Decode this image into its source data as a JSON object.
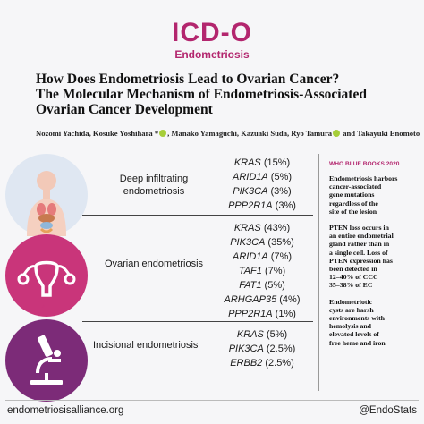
{
  "header": {
    "logo": "ICD-O",
    "logo_sub": "Endometriosis"
  },
  "title_lines": [
    "How Does Endometriosis Lead to Ovarian Cancer?",
    "The Molecular Mechanism of Endometriosis-Associated",
    "Ovarian Cancer Development"
  ],
  "authors": {
    "part1": "Nozomi Yachida, Kosuke Yoshihara *",
    "part2": ", Manako Yamaguchi, Kazuaki Suda, Ryo Tamura",
    "part3": " and Takayuki Enomoto"
  },
  "rows": [
    {
      "label": "Deep infiltrating endometriosis",
      "icon": "human-torso-icon",
      "genes": [
        {
          "name": "KRAS",
          "pct": " (15%)"
        },
        {
          "name": "ARID1A",
          "pct": " (5%)"
        },
        {
          "name": "PIK3CA",
          "pct": " (3%)"
        },
        {
          "name": "PPP2R1A",
          "pct": " (3%)"
        }
      ]
    },
    {
      "label": "Ovarian endometriosis",
      "icon": "uterus-ovaries-icon",
      "genes": [
        {
          "name": "KRAS",
          "pct": " (43%)"
        },
        {
          "name": "PIK3CA",
          "pct": " (35%)"
        },
        {
          "name": "ARID1A",
          "pct": " (7%)"
        },
        {
          "name": "TAF1",
          "pct": " (7%)"
        },
        {
          "name": "FAT1",
          "pct": " (5%)"
        },
        {
          "name": "ARHGAP35",
          "pct": " (4%)"
        },
        {
          "name": "PPP2R1A",
          "pct": " (1%)"
        }
      ]
    },
    {
      "label": "Incisional endometriosis",
      "icon": "microscope-icon",
      "genes": [
        {
          "name": "KRAS",
          "pct": " (5%)"
        },
        {
          "name": "PIK3CA",
          "pct": " (2.5%)"
        },
        {
          "name": "ERBB2",
          "pct": " (2.5%)"
        }
      ]
    }
  ],
  "sidebar": {
    "heading": "WHO BLUE BOOKS 2020",
    "blocks": [
      [
        "Endometriosis harbors",
        "cancer-associated",
        "gene mutations",
        "regardless of the",
        "site of the lesion"
      ],
      [
        "PTEN loss occurs in",
        "an entire endometrial",
        "gland rather than in",
        "a single cell.  Loss of",
        "PTEN expression has",
        "been detected in",
        "12–40% of CCC",
        "35–38% of EC"
      ],
      [
        "Endometriotic",
        "cysts are harsh",
        "environments with",
        "hemolysis and",
        "elevated levels of",
        "free heme and iron"
      ]
    ]
  },
  "footer": {
    "left": "endometriosisalliance.org",
    "right": "@EndoStats"
  },
  "colors": {
    "brand": "#b3266e",
    "row1_circle": "#dfe7f2",
    "row2_circle": "#c9357a",
    "row3_circle": "#7c2b78"
  }
}
